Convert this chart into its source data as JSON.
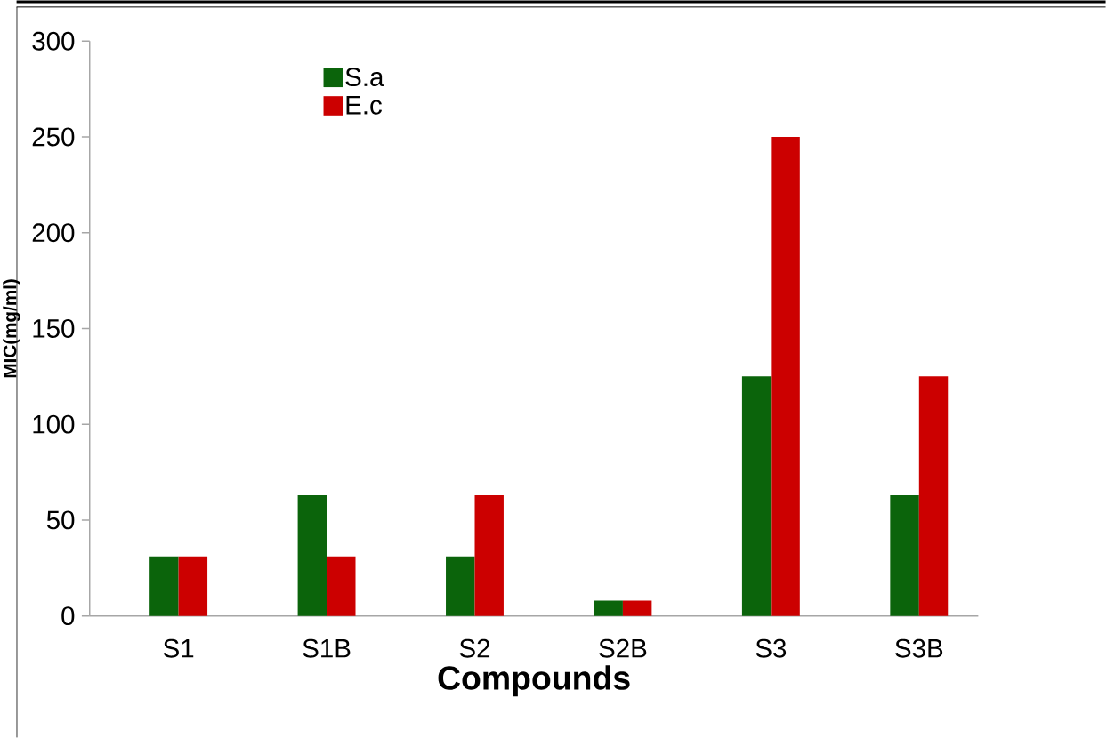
{
  "chart_data": {
    "type": "bar",
    "xlabel": "Compounds",
    "ylabel": "MIC(mg/ml)",
    "categories": [
      "S1",
      "S1B",
      "S2",
      "S2B",
      "S3",
      "S3B"
    ],
    "series": [
      {
        "name": "S.a",
        "color": "#0b640b",
        "values": [
          31,
          63,
          31,
          8,
          125,
          63
        ]
      },
      {
        "name": "E.c",
        "color": "#cc0000",
        "values": [
          31,
          31,
          63,
          8,
          250,
          125
        ]
      }
    ],
    "ylim": [
      0,
      300
    ],
    "yticks": [
      0,
      50,
      100,
      150,
      200,
      250,
      300
    ],
    "grid": false,
    "legend": "top left"
  }
}
